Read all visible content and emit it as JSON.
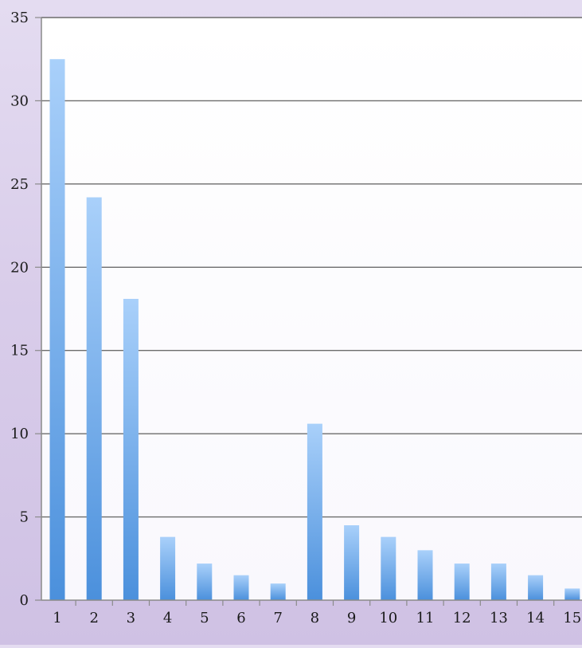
{
  "chart_data": {
    "type": "bar",
    "title": "",
    "xlabel": "",
    "ylabel": "",
    "categories": [
      "1",
      "2",
      "3",
      "4",
      "5",
      "6",
      "7",
      "8",
      "9",
      "10",
      "11",
      "12",
      "13",
      "14",
      "15"
    ],
    "values": [
      32.5,
      24.2,
      18.1,
      3.8,
      2.2,
      1.5,
      1.0,
      10.6,
      4.5,
      3.8,
      3.0,
      2.2,
      2.2,
      1.5,
      0.7
    ],
    "ylim": [
      0,
      35
    ],
    "yticks": [
      0,
      5,
      10,
      15,
      20,
      25,
      30,
      35
    ],
    "grid": true,
    "legend": "none"
  },
  "colors": {
    "bar_light": "#a9d0fa",
    "bar_dark": "#4b90dc",
    "gridline": "#6c6c6c",
    "plot_background": "#ffffff",
    "page_background": "#dcd2ec"
  }
}
